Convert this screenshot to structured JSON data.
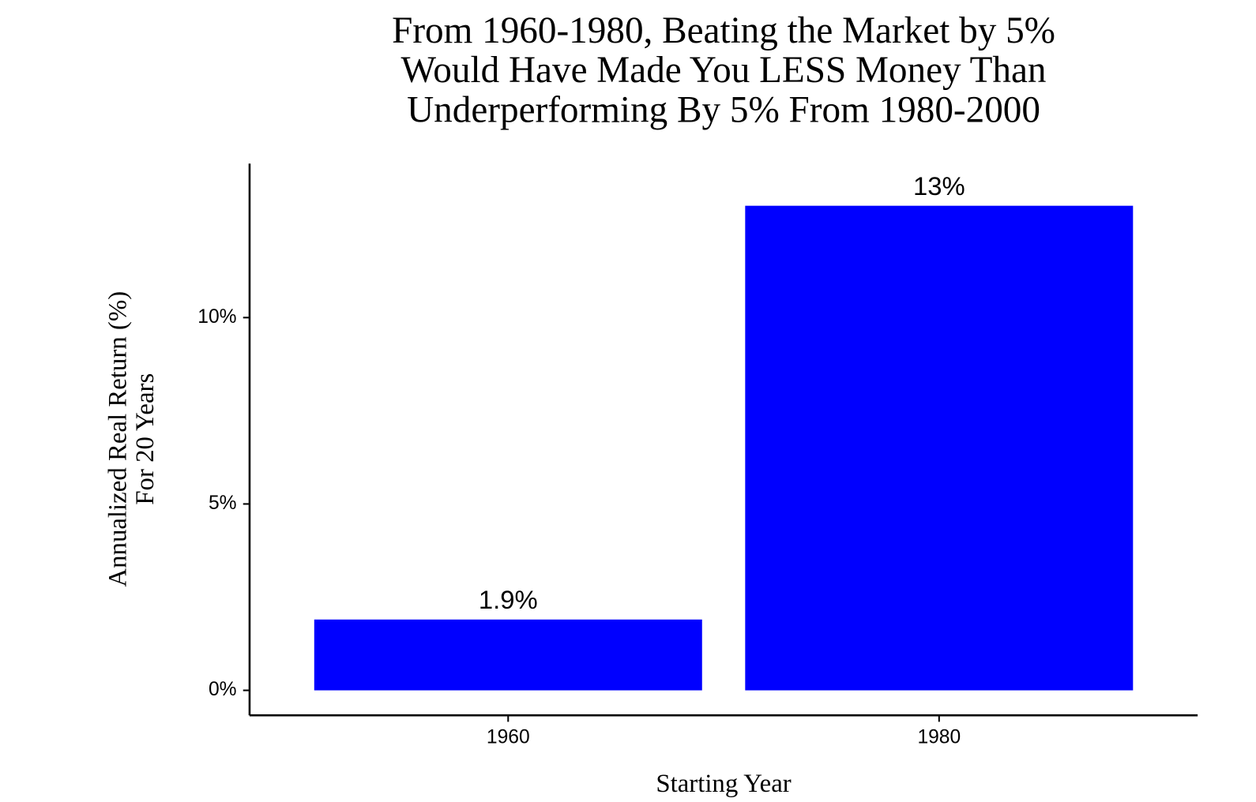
{
  "chart_data": {
    "type": "bar",
    "title": [
      "From 1960-1980, Beating the Market by 5%",
      "Would Have Made You LESS Money Than",
      "Underperforming By 5% From 1980-2000"
    ],
    "x_label": "Starting Year",
    "y_label": [
      "Annualized Real Return (%)",
      "For 20 Years"
    ],
    "categories": [
      "1960",
      "1980"
    ],
    "values": [
      1.9,
      13
    ],
    "value_labels": [
      "1.9%",
      "13%"
    ],
    "color": "#0000ff",
    "ylim": [
      -0.67,
      14.13
    ],
    "yticks": [
      {
        "value": 0,
        "label": "0%"
      },
      {
        "value": 5,
        "label": "5%"
      },
      {
        "value": 10,
        "label": "10%"
      }
    ],
    "grid": false
  }
}
